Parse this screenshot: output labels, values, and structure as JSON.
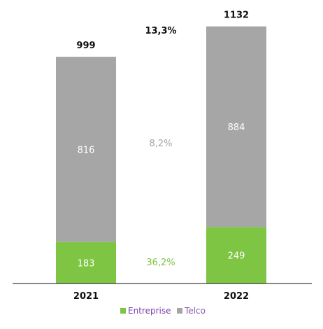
{
  "chart_data": {
    "type": "bar",
    "stacked": true,
    "categories": [
      "2021",
      "2022"
    ],
    "series": [
      {
        "name": "Entreprise",
        "values": [
          183,
          249
        ],
        "color": "#7dc543"
      },
      {
        "name": "Telco",
        "values": [
          816,
          884
        ],
        "color": "#a6a6a6"
      }
    ],
    "totals": [
      "999",
      "1132"
    ],
    "segment_labels": [
      [
        "183",
        "816"
      ],
      [
        "249",
        "884"
      ]
    ],
    "growth": {
      "total": "13,3%",
      "series": [
        "36,2%",
        "8,2%"
      ]
    },
    "ylim": [
      0,
      1132
    ],
    "grid": false,
    "legend_position": "bottom-center",
    "title": "",
    "xlabel": "",
    "ylabel": ""
  }
}
